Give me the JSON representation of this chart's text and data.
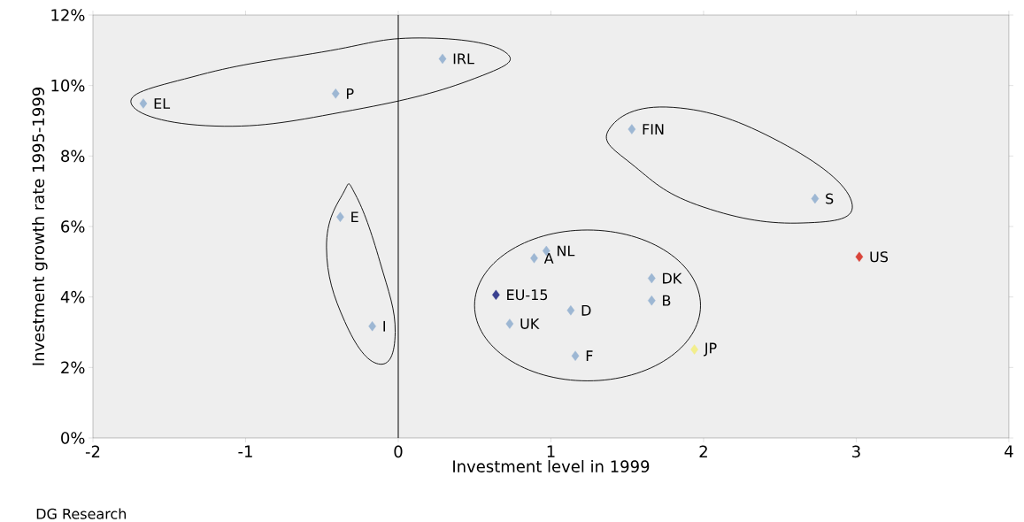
{
  "chart_data": {
    "type": "scatter",
    "xlabel": "Investment level in 1999",
    "ylabel": "Investment growth rate 1995-1999",
    "xlim": [
      -2,
      4
    ],
    "xticks": [
      -2,
      -1,
      0,
      1,
      2,
      3,
      4
    ],
    "ylim": [
      0,
      12
    ],
    "yticks": [
      {
        "value": 0,
        "label": "0%"
      },
      {
        "value": 2,
        "label": "2%"
      },
      {
        "value": 4,
        "label": "4%"
      },
      {
        "value": 6,
        "label": "6%"
      },
      {
        "value": 8,
        "label": "8%"
      },
      {
        "value": 10,
        "label": "10%"
      },
      {
        "value": 12,
        "label": "12%"
      }
    ],
    "marker": "diamond",
    "grid": false,
    "legend": false,
    "ref_lines": [
      {
        "axis": "x",
        "value": 0,
        "color": "#000000"
      }
    ],
    "annotations": [
      "DG Research"
    ],
    "series": [
      {
        "name": "EL",
        "color": "#9db7d3",
        "x": [
          -1.67
        ],
        "values": [
          9.49
        ]
      },
      {
        "name": "P",
        "color": "#9db7d3",
        "x": [
          -0.41
        ],
        "values": [
          9.77
        ]
      },
      {
        "name": "IRL",
        "color": "#9db7d3",
        "x": [
          0.29
        ],
        "values": [
          10.76
        ]
      },
      {
        "name": "FIN",
        "color": "#9db7d3",
        "x": [
          1.53
        ],
        "values": [
          8.76
        ]
      },
      {
        "name": "S",
        "color": "#9db7d3",
        "x": [
          2.73
        ],
        "values": [
          6.79
        ]
      },
      {
        "name": "E",
        "color": "#9db7d3",
        "x": [
          -0.38
        ],
        "values": [
          6.27
        ]
      },
      {
        "name": "I",
        "color": "#9db7d3",
        "x": [
          -0.17
        ],
        "values": [
          3.17
        ]
      },
      {
        "name": "A",
        "color": "#9db7d3",
        "x": [
          0.89
        ],
        "values": [
          5.1
        ]
      },
      {
        "name": "NL",
        "color": "#9db7d3",
        "x": [
          0.97
        ],
        "values": [
          5.31
        ]
      },
      {
        "name": "DK",
        "color": "#9db7d3",
        "x": [
          1.66
        ],
        "values": [
          4.53
        ]
      },
      {
        "name": "B",
        "color": "#9db7d3",
        "x": [
          1.66
        ],
        "values": [
          3.9
        ]
      },
      {
        "name": "EU-15",
        "color": "#3a4190",
        "x": [
          0.64
        ],
        "values": [
          4.06
        ]
      },
      {
        "name": "D",
        "color": "#9db7d3",
        "x": [
          1.13
        ],
        "values": [
          3.62
        ]
      },
      {
        "name": "UK",
        "color": "#9db7d3",
        "x": [
          0.73
        ],
        "values": [
          3.24
        ]
      },
      {
        "name": "F",
        "color": "#9db7d3",
        "x": [
          1.16
        ],
        "values": [
          2.33
        ]
      },
      {
        "name": "JP",
        "color": "#f2ee8c",
        "x": [
          1.94
        ],
        "values": [
          2.51
        ]
      },
      {
        "name": "US",
        "color": "#d9443a",
        "x": [
          3.02
        ],
        "values": [
          5.14
        ]
      }
    ]
  }
}
